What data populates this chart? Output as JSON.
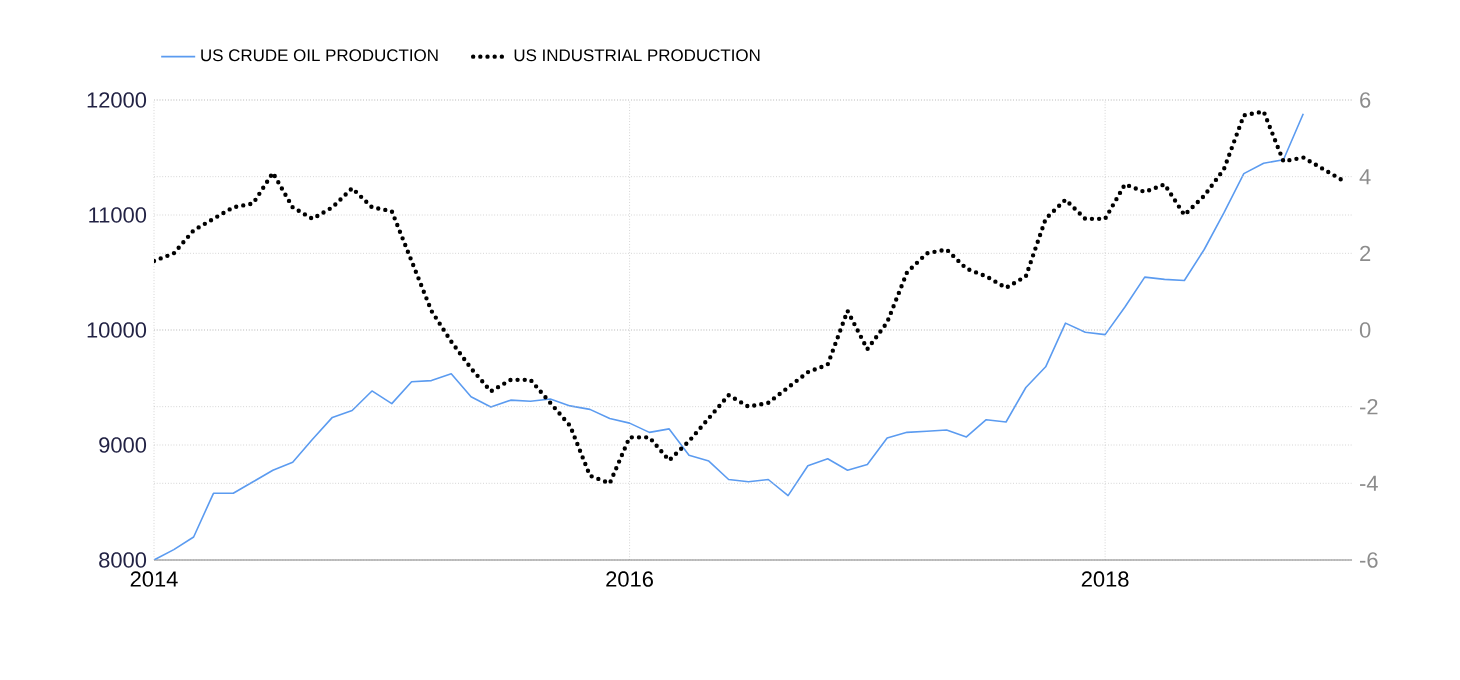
{
  "chart_data": {
    "type": "line",
    "xlim": [
      "2014-01",
      "2019-01-15"
    ],
    "xticks": [
      "2014",
      "2016",
      "2018"
    ],
    "ylim": [
      8000,
      12000
    ],
    "yticks": [
      8000,
      9000,
      10000,
      11000,
      12000
    ],
    "y2lim": [
      -6,
      6
    ],
    "y2ticks": [
      -6,
      -4,
      -2,
      0,
      2,
      4,
      6
    ],
    "grid": true,
    "legend": "top left",
    "series": [
      {
        "name": "US CRUDE OIL PRODUCTION",
        "color": "#5b9bf0",
        "line_style": "solid",
        "x": [
          "2014-01",
          "2014-02",
          "2014-03",
          "2014-04",
          "2014-05",
          "2014-06",
          "2014-07",
          "2014-08",
          "2014-09",
          "2014-10",
          "2014-11",
          "2014-12",
          "2015-01",
          "2015-02",
          "2015-03",
          "2015-04",
          "2015-05",
          "2015-06",
          "2015-07",
          "2015-08",
          "2015-09",
          "2015-10",
          "2015-11",
          "2015-12",
          "2016-01",
          "2016-02",
          "2016-03",
          "2016-04",
          "2016-05",
          "2016-06",
          "2016-07",
          "2016-08",
          "2016-09",
          "2016-10",
          "2016-11",
          "2016-12",
          "2017-01",
          "2017-02",
          "2017-03",
          "2017-04",
          "2017-05",
          "2017-06",
          "2017-07",
          "2017-08",
          "2017-09",
          "2017-10",
          "2017-11",
          "2017-12",
          "2018-01",
          "2018-02",
          "2018-03",
          "2018-04",
          "2018-05",
          "2018-06",
          "2018-07",
          "2018-08",
          "2018-09",
          "2018-10",
          "2018-11"
        ],
        "values": [
          8000,
          8090,
          8200,
          8580,
          8580,
          8680,
          8780,
          8850,
          9050,
          9240,
          9300,
          9470,
          9360,
          9550,
          9560,
          9620,
          9420,
          9330,
          9390,
          9380,
          9400,
          9340,
          9310,
          9230,
          9190,
          9110,
          9140,
          8910,
          8860,
          8700,
          8680,
          8700,
          8560,
          8820,
          8880,
          8780,
          8830,
          9060,
          9110,
          9120,
          9130,
          9070,
          9220,
          9200,
          9500,
          9680,
          10060,
          9980,
          9960,
          10200,
          10460,
          10440,
          10430,
          10700,
          11020,
          11360,
          11450,
          11480,
          11880
        ]
      },
      {
        "name": "US INDUSTRIAL PRODUCTION",
        "color": "#000000",
        "line_style": "dotted",
        "axis": "y2",
        "x": [
          "2014-01",
          "2014-02",
          "2014-03",
          "2014-04",
          "2014-05",
          "2014-06",
          "2014-07",
          "2014-08",
          "2014-09",
          "2014-10",
          "2014-11",
          "2014-12",
          "2015-01",
          "2015-02",
          "2015-03",
          "2015-04",
          "2015-05",
          "2015-06",
          "2015-07",
          "2015-08",
          "2015-09",
          "2015-10",
          "2015-11",
          "2015-12",
          "2016-01",
          "2016-02",
          "2016-03",
          "2016-04",
          "2016-05",
          "2016-06",
          "2016-07",
          "2016-08",
          "2016-09",
          "2016-10",
          "2016-11",
          "2016-12",
          "2017-01",
          "2017-02",
          "2017-03",
          "2017-04",
          "2017-05",
          "2017-06",
          "2017-07",
          "2017-08",
          "2017-09",
          "2017-10",
          "2017-11",
          "2017-12",
          "2018-01",
          "2018-02",
          "2018-03",
          "2018-04",
          "2018-05",
          "2018-06",
          "2018-07",
          "2018-08",
          "2018-09",
          "2018-10",
          "2018-11",
          "2018-12",
          "2019-01"
        ],
        "values": [
          1.8,
          2.0,
          2.6,
          2.9,
          3.2,
          3.3,
          4.1,
          3.2,
          2.9,
          3.2,
          3.7,
          3.2,
          3.1,
          1.8,
          0.5,
          -0.3,
          -1.0,
          -1.6,
          -1.3,
          -1.3,
          -1.9,
          -2.5,
          -3.8,
          -4.0,
          -2.8,
          -2.8,
          -3.4,
          -2.9,
          -2.3,
          -1.7,
          -2.0,
          -1.9,
          -1.5,
          -1.1,
          -0.9,
          0.5,
          -0.5,
          0.2,
          1.5,
          2.0,
          2.1,
          1.6,
          1.4,
          1.1,
          1.4,
          2.9,
          3.4,
          2.9,
          2.9,
          3.8,
          3.6,
          3.8,
          3.0,
          3.5,
          4.2,
          5.6,
          5.7,
          4.4,
          4.5,
          4.2,
          3.9
        ]
      }
    ]
  }
}
